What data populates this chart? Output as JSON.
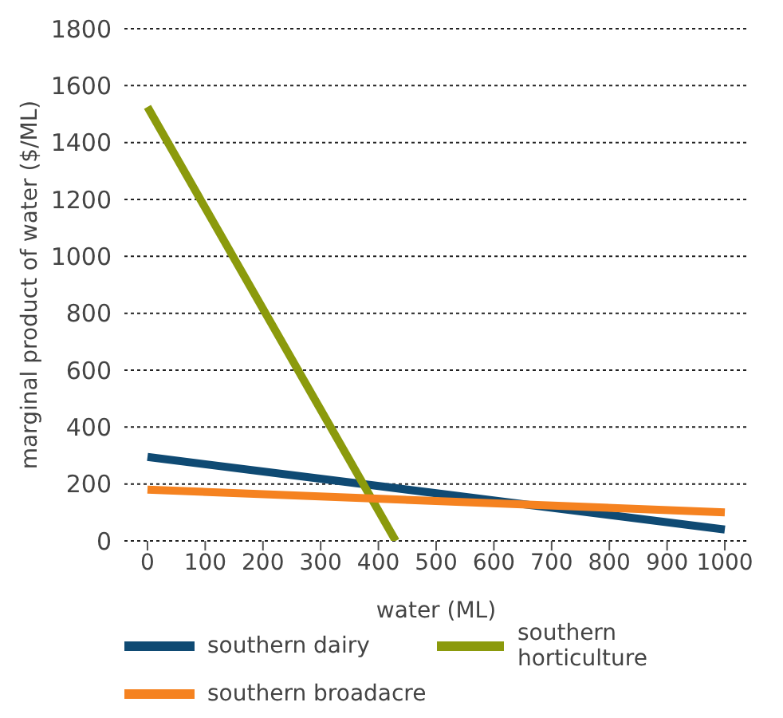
{
  "chart_data": {
    "type": "line",
    "xlabel": "water (ML)",
    "ylabel": "marginal product of water ($/ML)",
    "series": [
      {
        "name": "southern dairy",
        "color": "#0f4a73",
        "x": [
          0,
          1000
        ],
        "values": [
          295,
          40
        ]
      },
      {
        "name": "southern horticulture",
        "color": "#8b9a0c",
        "x": [
          0,
          430
        ],
        "values": [
          1525,
          0
        ]
      },
      {
        "name": "southern broadacre",
        "color": "#f58220",
        "x": [
          0,
          1000
        ],
        "values": [
          180,
          100
        ]
      }
    ],
    "xlim": [
      -40,
      1040
    ],
    "xticks": [
      0,
      100,
      200,
      300,
      400,
      500,
      600,
      700,
      800,
      900,
      1000
    ],
    "ylim": [
      0,
      1800
    ],
    "yticks": [
      0,
      200,
      400,
      600,
      800,
      1000,
      1200,
      1400,
      1600,
      1800
    ],
    "grid": "y",
    "legend": "bottom",
    "marker": "none",
    "line_style": "solid"
  }
}
